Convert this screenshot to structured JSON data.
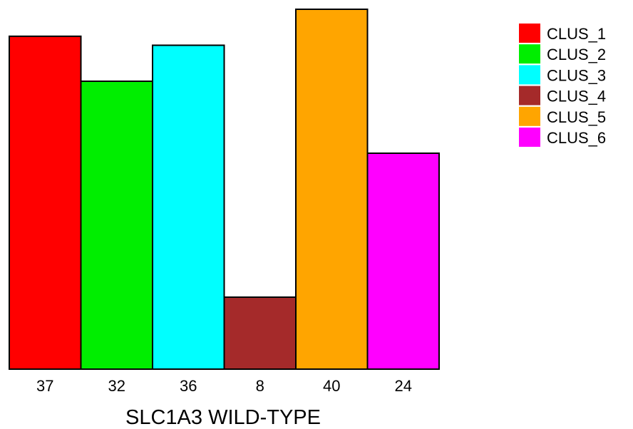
{
  "chart_data": {
    "type": "bar",
    "categories": [
      "37",
      "32",
      "36",
      "8",
      "40",
      "24"
    ],
    "values": [
      37,
      32,
      36,
      8,
      40,
      24
    ],
    "series_names": [
      "CLUS_1",
      "CLUS_2",
      "CLUS_3",
      "CLUS_4",
      "CLUS_5",
      "CLUS_6"
    ],
    "colors": [
      "#ff0000",
      "#00ee00",
      "#00ffff",
      "#a52a2a",
      "#ffa500",
      "#ff00ff"
    ],
    "xlabel": "SLC1A3 WILD-TYPE",
    "ylabel": "",
    "ylim": [
      0,
      40
    ],
    "grid": false,
    "legend": "top-right"
  }
}
